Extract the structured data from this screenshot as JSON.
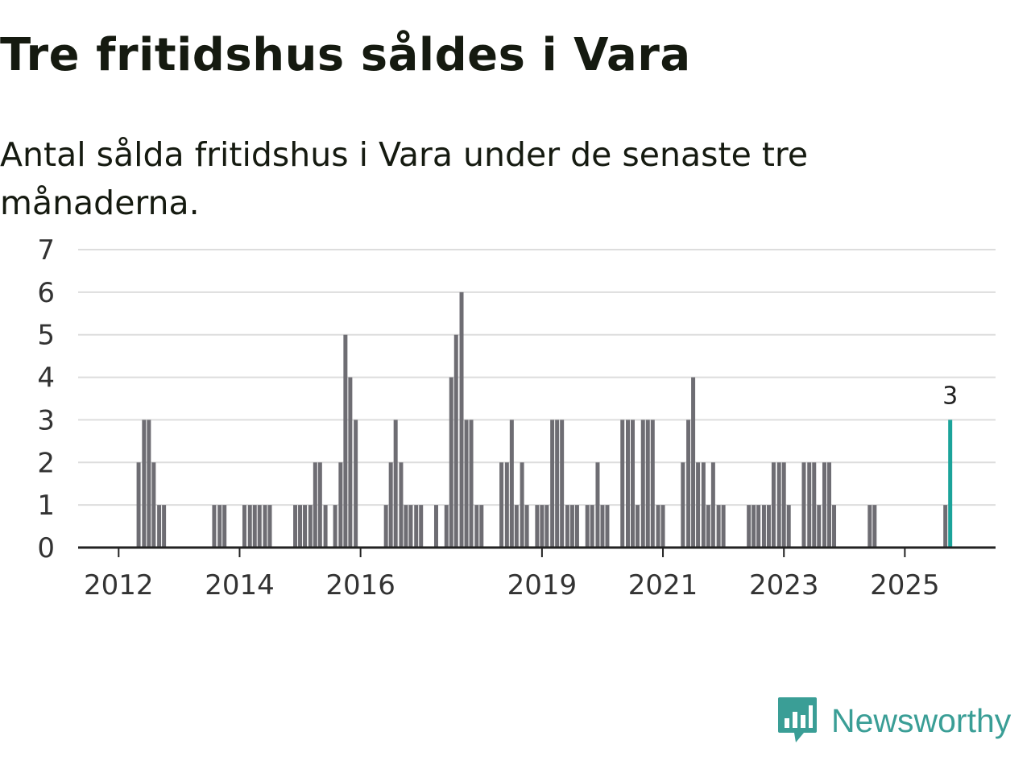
{
  "header": {
    "title": "Tre fritidshus såldes i Vara",
    "subtitle": "Antal sålda fritidshus i Vara under de senaste tre månaderna."
  },
  "brand": {
    "name": "Newsworthy",
    "color": "#3a9e96"
  },
  "colors": {
    "bar": "#6e6d73",
    "highlight": "#1ba39a",
    "grid": "#dddddd",
    "axis": "#222222"
  },
  "chart_data": {
    "type": "bar",
    "title": "Tre fritidshus såldes i Vara",
    "subtitle": "Antal sålda fritidshus i Vara under de senaste tre månaderna.",
    "xlabel": "",
    "ylabel": "",
    "ylim": [
      0,
      7
    ],
    "yticks": [
      0,
      1,
      2,
      3,
      4,
      5,
      6,
      7
    ],
    "xlim": [
      2011.33,
      2026.5
    ],
    "xticks": [
      2012,
      2014,
      2016,
      2019,
      2021,
      2023,
      2025
    ],
    "grid": true,
    "series": [
      {
        "name": "Antal sålda fritidshus",
        "x": [
          2012.33,
          2012.42,
          2012.5,
          2012.58,
          2012.67,
          2012.75,
          2013.58,
          2013.67,
          2013.75,
          2014.08,
          2014.17,
          2014.25,
          2014.33,
          2014.42,
          2014.5,
          2014.92,
          2015.0,
          2015.08,
          2015.17,
          2015.25,
          2015.33,
          2015.42,
          2015.58,
          2015.67,
          2015.75,
          2015.83,
          2015.92,
          2016.42,
          2016.5,
          2016.58,
          2016.67,
          2016.75,
          2016.83,
          2016.92,
          2017.0,
          2017.25,
          2017.42,
          2017.5,
          2017.58,
          2017.67,
          2017.75,
          2017.83,
          2017.92,
          2018.0,
          2018.33,
          2018.42,
          2018.5,
          2018.58,
          2018.67,
          2018.75,
          2018.92,
          2019.0,
          2019.08,
          2019.17,
          2019.25,
          2019.33,
          2019.42,
          2019.5,
          2019.58,
          2019.75,
          2019.83,
          2019.92,
          2020.0,
          2020.08,
          2020.33,
          2020.42,
          2020.5,
          2020.58,
          2020.67,
          2020.75,
          2020.83,
          2020.92,
          2021.0,
          2021.33,
          2021.42,
          2021.5,
          2021.58,
          2021.67,
          2021.75,
          2021.83,
          2021.92,
          2022.0,
          2022.42,
          2022.5,
          2022.58,
          2022.67,
          2022.75,
          2022.83,
          2022.92,
          2023.0,
          2023.08,
          2023.33,
          2023.42,
          2023.5,
          2023.58,
          2023.67,
          2023.75,
          2023.83,
          2024.42,
          2024.5,
          2025.67,
          2025.75
        ],
        "values": [
          2,
          3,
          3,
          2,
          1,
          1,
          1,
          1,
          1,
          1,
          1,
          1,
          1,
          1,
          1,
          1,
          1,
          1,
          1,
          2,
          2,
          1,
          1,
          2,
          5,
          4,
          3,
          1,
          2,
          3,
          2,
          1,
          1,
          1,
          1,
          1,
          1,
          4,
          5,
          6,
          3,
          3,
          1,
          1,
          2,
          2,
          3,
          1,
          2,
          1,
          1,
          1,
          1,
          3,
          3,
          3,
          1,
          1,
          1,
          1,
          1,
          2,
          1,
          1,
          3,
          3,
          3,
          1,
          3,
          3,
          3,
          1,
          1,
          2,
          3,
          4,
          2,
          2,
          1,
          2,
          1,
          1,
          1,
          1,
          1,
          1,
          1,
          2,
          2,
          2,
          1,
          2,
          2,
          2,
          1,
          2,
          2,
          1,
          1,
          1,
          1,
          3
        ]
      }
    ],
    "highlight": {
      "x": 2025.75,
      "value": 3,
      "label": "3"
    }
  }
}
